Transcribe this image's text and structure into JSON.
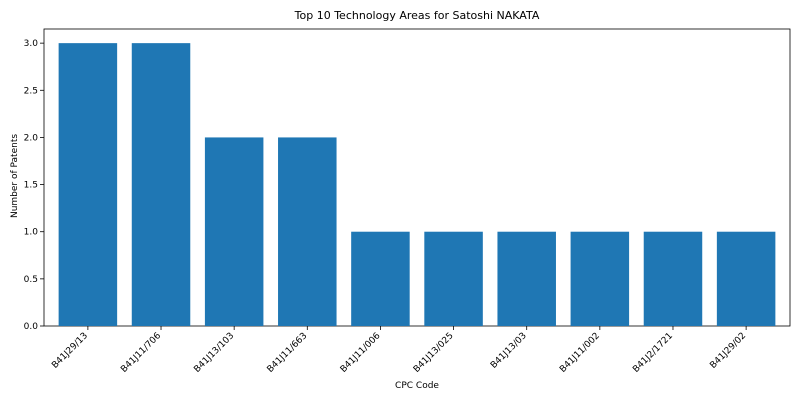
{
  "chart_data": {
    "type": "bar",
    "title": "Top 10 Technology Areas for Satoshi NAKATA",
    "xlabel": "CPC Code",
    "ylabel": "Number of Patents",
    "categories": [
      "B41J29/13",
      "B41J11/706",
      "B41J13/103",
      "B41J11/663",
      "B41J11/006",
      "B41J13/025",
      "B41J13/03",
      "B41J11/002",
      "B41J2/1721",
      "B41J29/02"
    ],
    "values": [
      3,
      3,
      2,
      2,
      1,
      1,
      1,
      1,
      1,
      1
    ],
    "ylim": [
      0,
      3.15
    ],
    "yticks": [
      0.0,
      0.5,
      1.0,
      1.5,
      2.0,
      2.5,
      3.0
    ],
    "ytick_labels": [
      "0.0",
      "0.5",
      "1.0",
      "1.5",
      "2.0",
      "2.5",
      "3.0"
    ],
    "bar_color": "#1f77b4",
    "grid": false
  }
}
